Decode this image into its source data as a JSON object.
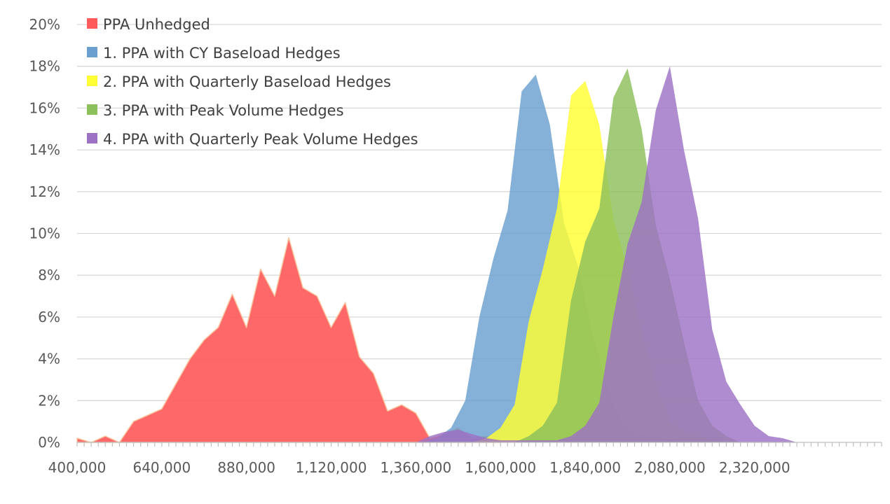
{
  "chart_data": {
    "type": "area",
    "title": "",
    "xlabel": "",
    "ylabel": "",
    "xlim": [
      400000,
      2680000
    ],
    "ylim": [
      0,
      0.2
    ],
    "x_tick_values": [
      400000,
      640000,
      880000,
      1120000,
      1360000,
      1600000,
      1840000,
      2080000,
      2320000
    ],
    "x_tick_labels": [
      "400,000",
      "640,000",
      "880,000",
      "1,120,000",
      "1,360,000",
      "1,600,000",
      "1,840,000",
      "2,080,000",
      "2,320,000"
    ],
    "y_tick_values": [
      0,
      0.02,
      0.04,
      0.06,
      0.08,
      0.1,
      0.12,
      0.14,
      0.16,
      0.18,
      0.2
    ],
    "y_tick_labels": [
      "0%",
      "2%",
      "4%",
      "6%",
      "8%",
      "10%",
      "12%",
      "14%",
      "16%",
      "18%",
      "20%"
    ],
    "grid": true,
    "legend_position": "top-left",
    "series": [
      {
        "name": "PPA Unhedged",
        "color": "#ff5b5b",
        "x": [
          400000,
          440000,
          480000,
          520000,
          560000,
          600000,
          640000,
          680000,
          720000,
          760000,
          800000,
          840000,
          880000,
          920000,
          960000,
          1000000,
          1040000,
          1080000,
          1120000,
          1160000,
          1200000,
          1240000,
          1280000,
          1320000,
          1360000,
          1400000,
          1440000,
          1480000,
          1520000,
          1560000,
          1600000
        ],
        "values": [
          0.002,
          0,
          0.003,
          0,
          0.01,
          0.013,
          0.016,
          0.028,
          0.04,
          0.049,
          0.055,
          0.071,
          0.055,
          0.083,
          0.07,
          0.098,
          0.074,
          0.07,
          0.055,
          0.067,
          0.041,
          0.033,
          0.015,
          0.018,
          0.014,
          0.002,
          0.004,
          0.007,
          0.002,
          0.003,
          0
        ]
      },
      {
        "name": "1. PPA with CY Baseload Hedges",
        "color": "#6aa0cf",
        "x": [
          1380000,
          1420000,
          1460000,
          1500000,
          1540000,
          1580000,
          1620000,
          1660000,
          1700000,
          1740000,
          1780000,
          1820000,
          1860000,
          1900000,
          1940000,
          1980000,
          2020000,
          2060000,
          2100000,
          2140000
        ],
        "values": [
          0,
          0.002,
          0.007,
          0.02,
          0.06,
          0.088,
          0.111,
          0.168,
          0.176,
          0.152,
          0.105,
          0.084,
          0.052,
          0.028,
          0.01,
          0.005,
          0.003,
          0.002,
          0.001,
          0
        ]
      },
      {
        "name": "2. PPA with Quarterly Baseload Hedges",
        "color": "#ffff33",
        "x": [
          1520000,
          1560000,
          1600000,
          1640000,
          1680000,
          1720000,
          1760000,
          1800000,
          1840000,
          1880000,
          1920000,
          1960000,
          2000000,
          2040000,
          2080000,
          2120000,
          2160000,
          2200000,
          2240000
        ],
        "values": [
          0,
          0.002,
          0.007,
          0.018,
          0.058,
          0.083,
          0.112,
          0.166,
          0.173,
          0.152,
          0.107,
          0.083,
          0.052,
          0.028,
          0.01,
          0.005,
          0.003,
          0.001,
          0
        ]
      },
      {
        "name": "3. PPA with Peak Volume Hedges",
        "color": "#8cc05a",
        "x": [
          1640000,
          1680000,
          1720000,
          1760000,
          1800000,
          1840000,
          1880000,
          1920000,
          1960000,
          2000000,
          2040000,
          2080000,
          2120000,
          2160000,
          2200000,
          2240000,
          2280000
        ],
        "values": [
          0,
          0.003,
          0.008,
          0.019,
          0.068,
          0.096,
          0.112,
          0.165,
          0.179,
          0.15,
          0.104,
          0.078,
          0.048,
          0.02,
          0.008,
          0.003,
          0
        ]
      },
      {
        "name": "4. PPA with Quarterly Peak Volume Hedges",
        "color": "#9d72c5",
        "x": [
          1360000,
          1400000,
          1440000,
          1480000,
          1520000,
          1560000,
          1600000,
          1640000,
          1680000,
          1720000,
          1760000,
          1800000,
          1840000,
          1880000,
          1920000,
          1960000,
          2000000,
          2040000,
          2080000,
          2120000,
          2160000,
          2200000,
          2240000,
          2280000,
          2320000,
          2360000,
          2400000,
          2440000
        ],
        "values": [
          0,
          0.003,
          0.005,
          0.006,
          0.004,
          0.002,
          0.001,
          0.001,
          0.001,
          0.001,
          0.001,
          0.003,
          0.008,
          0.019,
          0.06,
          0.095,
          0.115,
          0.159,
          0.18,
          0.14,
          0.107,
          0.054,
          0.029,
          0.018,
          0.008,
          0.003,
          0.002,
          0
        ]
      }
    ]
  }
}
